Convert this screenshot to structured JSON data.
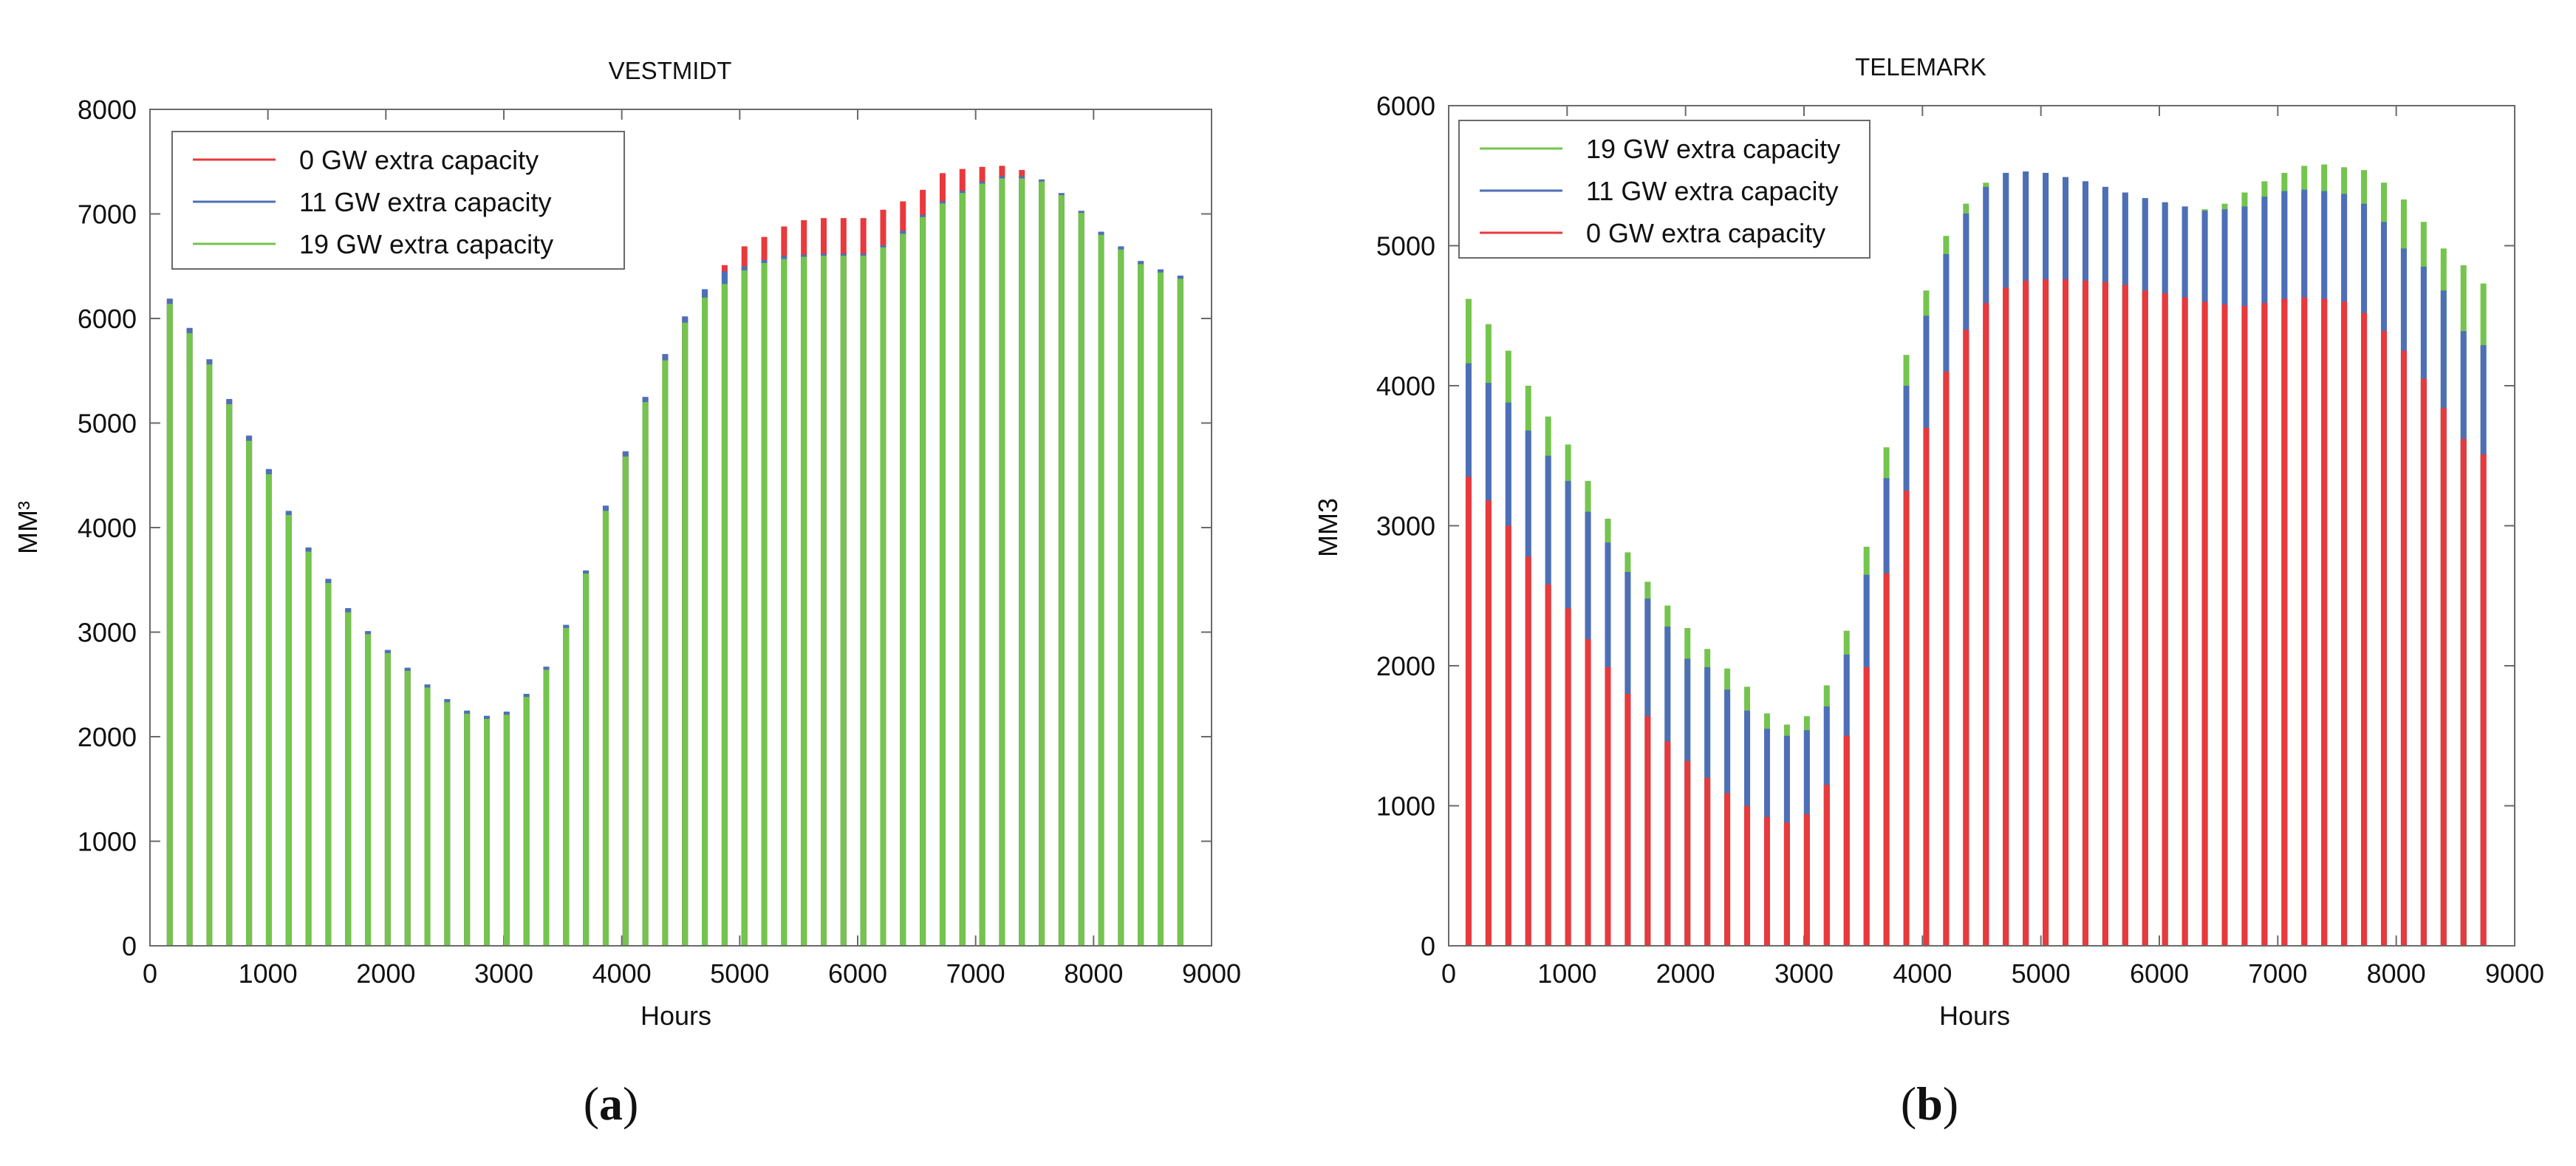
{
  "chart_data": [
    {
      "type": "bar",
      "panel_label_open": "(",
      "panel_label_letter": "a",
      "panel_label_close": ")",
      "title": "VESTMIDT",
      "xlabel": "Hours",
      "ylabel": "MM³",
      "xlim": [
        0,
        9000
      ],
      "ylim": [
        0,
        8000
      ],
      "xticks": [
        "0",
        "1000",
        "2000",
        "3000",
        "4000",
        "5000",
        "6000",
        "7000",
        "8000",
        "9000"
      ],
      "yticks": [
        "0",
        "1000",
        "2000",
        "3000",
        "4000",
        "5000",
        "6000",
        "7000",
        "8000"
      ],
      "legend_position": "top-left",
      "x": [
        168,
        336,
        504,
        672,
        840,
        1008,
        1176,
        1344,
        1512,
        1680,
        1848,
        2016,
        2184,
        2352,
        2520,
        2688,
        2856,
        3024,
        3192,
        3360,
        3528,
        3696,
        3864,
        4032,
        4200,
        4368,
        4536,
        4704,
        4872,
        5040,
        5208,
        5376,
        5544,
        5712,
        5880,
        6048,
        6216,
        6384,
        6552,
        6720,
        6888,
        7056,
        7224,
        7392,
        7560,
        7728,
        7896,
        8064,
        8232,
        8400,
        8568,
        8736
      ],
      "series": [
        {
          "name": "0 GW extra capacity",
          "color": "#e8393c",
          "values": [
            6180,
            5900,
            5600,
            5220,
            4870,
            4550,
            4150,
            3800,
            3500,
            3220,
            3000,
            2820,
            2650,
            2490,
            2350,
            2240,
            2190,
            2230,
            2400,
            2660,
            3060,
            3580,
            4200,
            4720,
            5240,
            5650,
            6010,
            6270,
            6510,
            6690,
            6780,
            6880,
            6940,
            6960,
            6960,
            6960,
            7040,
            7120,
            7230,
            7390,
            7430,
            7450,
            7460,
            7420,
            7320,
            7180,
            7020,
            6820,
            6680,
            6540,
            6460,
            6400
          ]
        },
        {
          "name": "11 GW extra capacity",
          "color": "#4e6fb7",
          "values": [
            6190,
            5910,
            5610,
            5230,
            4880,
            4560,
            4160,
            3810,
            3510,
            3230,
            3010,
            2830,
            2660,
            2500,
            2360,
            2250,
            2200,
            2240,
            2410,
            2670,
            3070,
            3590,
            4210,
            4730,
            5250,
            5660,
            6020,
            6280,
            6450,
            6500,
            6560,
            6600,
            6610,
            6620,
            6620,
            6620,
            6700,
            6840,
            6990,
            7120,
            7220,
            7310,
            7360,
            7360,
            7330,
            7200,
            7030,
            6830,
            6690,
            6550,
            6470,
            6410
          ]
        },
        {
          "name": "19 GW extra capacity",
          "color": "#74c44e",
          "values": [
            6140,
            5860,
            5560,
            5180,
            4830,
            4510,
            4120,
            3770,
            3470,
            3190,
            2980,
            2800,
            2630,
            2470,
            2330,
            2220,
            2170,
            2210,
            2380,
            2640,
            3040,
            3560,
            4160,
            4680,
            5200,
            5600,
            5960,
            6200,
            6330,
            6460,
            6530,
            6570,
            6590,
            6600,
            6600,
            6600,
            6680,
            6810,
            6970,
            7100,
            7200,
            7290,
            7340,
            7340,
            7310,
            7180,
            7010,
            6800,
            6660,
            6520,
            6440,
            6380
          ]
        }
      ]
    },
    {
      "type": "bar",
      "panel_label_open": "(",
      "panel_label_letter": "b",
      "panel_label_close": ")",
      "title": "TELEMARK",
      "xlabel": "Hours",
      "ylabel": "MM3",
      "xlim": [
        0,
        9000
      ],
      "ylim": [
        0,
        6000
      ],
      "xticks": [
        "0",
        "1000",
        "2000",
        "3000",
        "4000",
        "5000",
        "6000",
        "7000",
        "8000",
        "9000"
      ],
      "yticks": [
        "0",
        "1000",
        "2000",
        "3000",
        "4000",
        "5000",
        "6000"
      ],
      "legend_position": "top-left",
      "x": [
        168,
        336,
        504,
        672,
        840,
        1008,
        1176,
        1344,
        1512,
        1680,
        1848,
        2016,
        2184,
        2352,
        2520,
        2688,
        2856,
        3024,
        3192,
        3360,
        3528,
        3696,
        3864,
        4032,
        4200,
        4368,
        4536,
        4704,
        4872,
        5040,
        5208,
        5376,
        5544,
        5712,
        5880,
        6048,
        6216,
        6384,
        6552,
        6720,
        6888,
        7056,
        7224,
        7392,
        7560,
        7728,
        7896,
        8064,
        8232,
        8400,
        8568,
        8736
      ],
      "series": [
        {
          "name": "19 GW extra capacity",
          "color": "#74c44e",
          "values": [
            4620,
            4440,
            4250,
            4000,
            3780,
            3580,
            3320,
            3050,
            2810,
            2600,
            2430,
            2270,
            2120,
            1980,
            1850,
            1660,
            1580,
            1640,
            1860,
            2250,
            2850,
            3560,
            4220,
            4680,
            5070,
            5300,
            5450,
            5520,
            5530,
            5520,
            5490,
            5460,
            5420,
            5380,
            5340,
            5310,
            5280,
            5260,
            5300,
            5380,
            5460,
            5520,
            5570,
            5580,
            5560,
            5540,
            5450,
            5330,
            5170,
            4980,
            4860,
            4730
          ]
        },
        {
          "name": "11 GW extra capacity",
          "color": "#4e6fb7",
          "values": [
            4160,
            4020,
            3880,
            3680,
            3500,
            3320,
            3100,
            2880,
            2670,
            2480,
            2280,
            2050,
            1990,
            1830,
            1680,
            1550,
            1500,
            1540,
            1710,
            2080,
            2650,
            3340,
            4000,
            4500,
            4940,
            5230,
            5420,
            5520,
            5530,
            5520,
            5490,
            5460,
            5420,
            5380,
            5340,
            5310,
            5280,
            5250,
            5260,
            5280,
            5350,
            5390,
            5400,
            5390,
            5370,
            5300,
            5170,
            4980,
            4850,
            4680,
            4390,
            4290
          ]
        },
        {
          "name": "0 GW extra capacity",
          "color": "#e8393c",
          "values": [
            3350,
            3180,
            3000,
            2780,
            2580,
            2410,
            2190,
            1990,
            1800,
            1640,
            1460,
            1320,
            1200,
            1090,
            1000,
            920,
            880,
            940,
            1150,
            1500,
            1990,
            2660,
            3250,
            3700,
            4100,
            4400,
            4590,
            4700,
            4750,
            4760,
            4760,
            4750,
            4740,
            4720,
            4680,
            4660,
            4630,
            4600,
            4580,
            4570,
            4590,
            4620,
            4630,
            4620,
            4600,
            4520,
            4390,
            4250,
            4050,
            3840,
            3620,
            3510
          ]
        }
      ]
    }
  ]
}
